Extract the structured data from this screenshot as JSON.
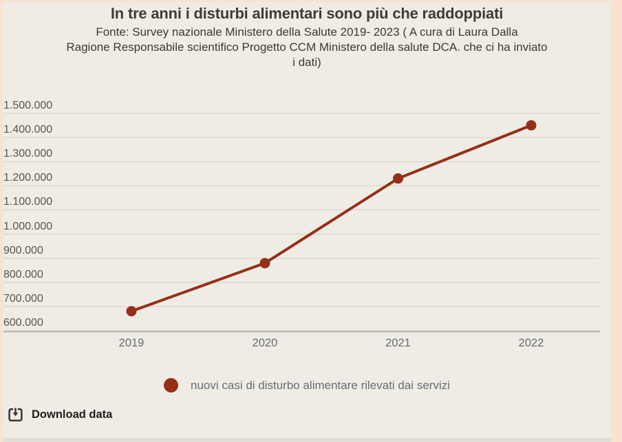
{
  "header": {
    "title": "In tre anni i disturbi alimentari sono più che raddoppiati",
    "subtitle_lines": [
      "Fonte: Survey nazionale Ministero della Salute 2019- 2023 ( A cura di Laura Dalla",
      "Ragione Responsabile scientifico Progetto CCM Ministero della salute DCA. che ci ha inviato",
      "i dati)"
    ]
  },
  "chart_data": {
    "type": "line",
    "title": "In tre anni i disturbi alimentari sono più che raddoppiati",
    "x": [
      "2019",
      "2020",
      "2021",
      "2022"
    ],
    "series": [
      {
        "name": "nuovi casi di disturbo alimentare rilevati dai servizi",
        "values": [
          680569,
          879560,
          1230468,
          1450567
        ],
        "color": "#953018"
      }
    ],
    "ylim": [
      600000,
      1500000
    ],
    "y_ticks": [
      {
        "value": 1500000,
        "label": "1.500.000"
      },
      {
        "value": 1400000,
        "label": "1.400.000"
      },
      {
        "value": 1300000,
        "label": "1.300.000"
      },
      {
        "value": 1200000,
        "label": "1.200.000"
      },
      {
        "value": 1100000,
        "label": "1.100.000"
      },
      {
        "value": 1000000,
        "label": "1.000.000"
      },
      {
        "value": 900000,
        "label": "900.000"
      },
      {
        "value": 800000,
        "label": "800.000"
      },
      {
        "value": 700000,
        "label": "700.000"
      },
      {
        "value": 600000,
        "label": "600.000"
      }
    ],
    "grid": "horizontal",
    "legend_position": "bottom",
    "marker": "circle"
  },
  "legend": {
    "label": "nuovi casi di disturbo alimentare rilevati dai servizi"
  },
  "footer": {
    "download_label": "Download data"
  },
  "colors": {
    "page_border": "#f8e3d0",
    "panel_background": "#eeece4",
    "gridline": "#dcd8cd",
    "axis_line": "#b9b4aa",
    "series": "#953018",
    "title_text": "#423b32",
    "subtitle_text": "#3e3832",
    "y_tick_text": "#5a554e",
    "x_tick_text": "#666c73",
    "legend_text": "#666d75",
    "download_text": "#1e1d1b"
  }
}
